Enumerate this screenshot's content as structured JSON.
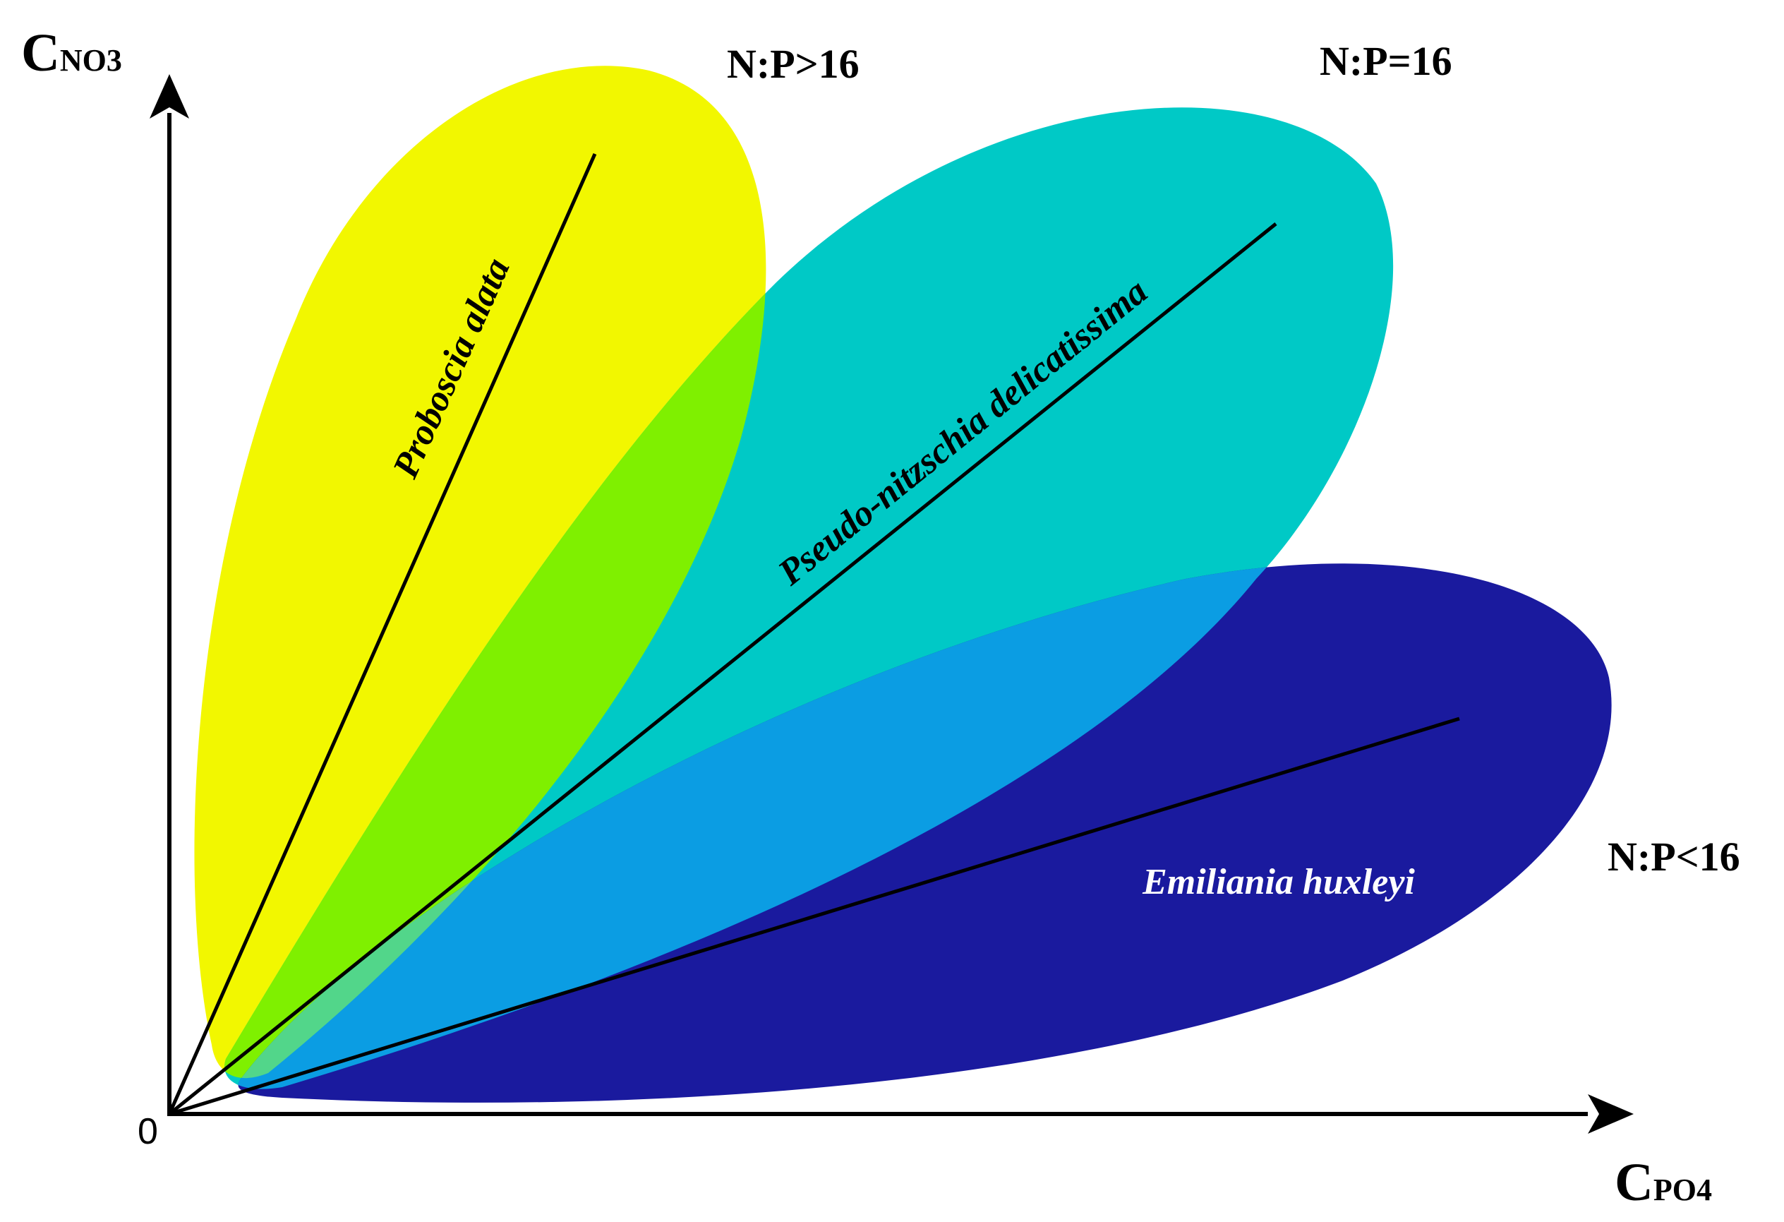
{
  "axes": {
    "y_label_main": "C",
    "y_label_sub": "NO3",
    "x_label_main": "C",
    "x_label_sub": "PO4",
    "origin": "0"
  },
  "ratios": {
    "high": "N:P>16",
    "equal": "N:P=16",
    "low": "N:P<16"
  },
  "species": {
    "high": "Proboscia alata",
    "equal": "Pseudo-nitzschia delicatissima",
    "low": "Emiliania huxleyi"
  },
  "colors": {
    "high_region": "#f2f700",
    "equal_region": "#00c9c6",
    "low_region": "#1a1a9e",
    "overlap_high_equal": "#7ff000",
    "overlap_equal_low": "#0b9de3",
    "low_label": "#ffffff"
  }
}
